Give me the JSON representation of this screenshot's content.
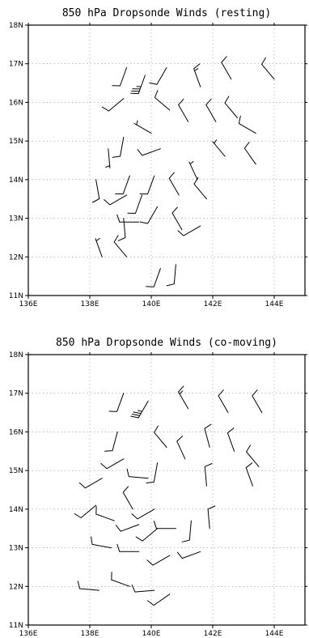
{
  "chart_data": [
    {
      "type": "wind-barb",
      "title": "850 hPa Dropsonde Winds (resting)",
      "xlim": [
        136,
        145
      ],
      "ylim": [
        11,
        18
      ],
      "x_ticks": [
        136,
        138,
        140,
        142,
        144
      ],
      "x_tick_labels": [
        "136E",
        "138E",
        "140E",
        "142E",
        "144E"
      ],
      "y_ticks": [
        11,
        12,
        13,
        14,
        15,
        16,
        17,
        18
      ],
      "y_tick_labels": [
        "11N",
        "12N",
        "13N",
        "14N",
        "15N",
        "16N",
        "17N",
        "18N"
      ],
      "grid": true,
      "barbs": [
        {
          "lon": 139.2,
          "lat": 16.9,
          "dir": 200,
          "spd": 10
        },
        {
          "lon": 139.8,
          "lat": 16.7,
          "dir": 200,
          "spd": 35
        },
        {
          "lon": 140.5,
          "lat": 16.9,
          "dir": 210,
          "spd": 10
        },
        {
          "lon": 141.6,
          "lat": 16.4,
          "dir": 340,
          "spd": 15
        },
        {
          "lon": 142.6,
          "lat": 16.6,
          "dir": 330,
          "spd": 10
        },
        {
          "lon": 144.0,
          "lat": 16.6,
          "dir": 320,
          "spd": 10
        },
        {
          "lon": 139.1,
          "lat": 16.1,
          "dir": 230,
          "spd": 10
        },
        {
          "lon": 140.6,
          "lat": 15.8,
          "dir": 310,
          "spd": 10
        },
        {
          "lon": 141.2,
          "lat": 15.5,
          "dir": 330,
          "spd": 10
        },
        {
          "lon": 142.1,
          "lat": 15.5,
          "dir": 330,
          "spd": 10
        },
        {
          "lon": 142.8,
          "lat": 15.6,
          "dir": 320,
          "spd": 10
        },
        {
          "lon": 143.4,
          "lat": 15.2,
          "dir": 300,
          "spd": 10
        },
        {
          "lon": 139.1,
          "lat": 15.1,
          "dir": 190,
          "spd": 10
        },
        {
          "lon": 138.6,
          "lat": 14.8,
          "dir": 175,
          "spd": 5
        },
        {
          "lon": 140.0,
          "lat": 15.2,
          "dir": 300,
          "spd": 5
        },
        {
          "lon": 140.3,
          "lat": 14.8,
          "dir": 250,
          "spd": 10
        },
        {
          "lon": 142.4,
          "lat": 14.6,
          "dir": 320,
          "spd": 5
        },
        {
          "lon": 143.4,
          "lat": 14.4,
          "dir": 325,
          "spd": 10
        },
        {
          "lon": 138.2,
          "lat": 14.0,
          "dir": 170,
          "spd": 10
        },
        {
          "lon": 139.3,
          "lat": 14.1,
          "dir": 200,
          "spd": 10
        },
        {
          "lon": 140.1,
          "lat": 14.1,
          "dir": 200,
          "spd": 10
        },
        {
          "lon": 141.5,
          "lat": 14.0,
          "dir": 335,
          "spd": 5
        },
        {
          "lon": 139.2,
          "lat": 13.6,
          "dir": 240,
          "spd": 10
        },
        {
          "lon": 139.7,
          "lat": 13.6,
          "dir": 200,
          "spd": 10
        },
        {
          "lon": 140.2,
          "lat": 13.3,
          "dir": 210,
          "spd": 10
        },
        {
          "lon": 140.9,
          "lat": 13.6,
          "dir": 330,
          "spd": 10
        },
        {
          "lon": 141.8,
          "lat": 13.5,
          "dir": 320,
          "spd": 10
        },
        {
          "lon": 139.1,
          "lat": 13.0,
          "dir": 175,
          "spd": 10
        },
        {
          "lon": 139.6,
          "lat": 12.9,
          "dir": 270,
          "spd": 10
        },
        {
          "lon": 141.0,
          "lat": 12.7,
          "dir": 330,
          "spd": 10
        },
        {
          "lon": 141.6,
          "lat": 12.8,
          "dir": 240,
          "spd": 10
        },
        {
          "lon": 138.4,
          "lat": 12.0,
          "dir": 340,
          "spd": 5
        },
        {
          "lon": 139.2,
          "lat": 12.0,
          "dir": 320,
          "spd": 10
        },
        {
          "lon": 140.3,
          "lat": 11.7,
          "dir": 200,
          "spd": 10
        },
        {
          "lon": 140.8,
          "lat": 11.8,
          "dir": 185,
          "spd": 10
        }
      ]
    },
    {
      "type": "wind-barb",
      "title": "850 hPa Dropsonde Winds (co-moving)",
      "xlim": [
        136,
        145
      ],
      "ylim": [
        11,
        18
      ],
      "x_ticks": [
        136,
        138,
        140,
        142,
        144
      ],
      "x_tick_labels": [
        "136E",
        "138E",
        "140E",
        "142E",
        "144E"
      ],
      "y_ticks": [
        11,
        12,
        13,
        14,
        15,
        16,
        17,
        18
      ],
      "y_tick_labels": [
        "11N",
        "12N",
        "13N",
        "14N",
        "15N",
        "16N",
        "17N",
        "18N"
      ],
      "grid": true,
      "barbs": [
        {
          "lon": 139.1,
          "lat": 17.0,
          "dir": 200,
          "spd": 10
        },
        {
          "lon": 139.9,
          "lat": 16.8,
          "dir": 210,
          "spd": 35
        },
        {
          "lon": 141.2,
          "lat": 16.6,
          "dir": 330,
          "spd": 15
        },
        {
          "lon": 142.5,
          "lat": 16.5,
          "dir": 330,
          "spd": 10
        },
        {
          "lon": 143.6,
          "lat": 16.5,
          "dir": 330,
          "spd": 10
        },
        {
          "lon": 138.9,
          "lat": 16.0,
          "dir": 195,
          "spd": 10
        },
        {
          "lon": 140.5,
          "lat": 15.6,
          "dir": 320,
          "spd": 10
        },
        {
          "lon": 141.1,
          "lat": 15.3,
          "dir": 335,
          "spd": 10
        },
        {
          "lon": 141.9,
          "lat": 15.6,
          "dir": 345,
          "spd": 10
        },
        {
          "lon": 142.7,
          "lat": 15.5,
          "dir": 340,
          "spd": 10
        },
        {
          "lon": 143.5,
          "lat": 15.1,
          "dir": 320,
          "spd": 10
        },
        {
          "lon": 138.4,
          "lat": 14.8,
          "dir": 240,
          "spd": 10
        },
        {
          "lon": 139.1,
          "lat": 15.3,
          "dir": 240,
          "spd": 10
        },
        {
          "lon": 140.2,
          "lat": 15.2,
          "dir": 190,
          "spd": 10
        },
        {
          "lon": 139.9,
          "lat": 14.8,
          "dir": 275,
          "spd": 10
        },
        {
          "lon": 141.8,
          "lat": 14.6,
          "dir": 355,
          "spd": 10
        },
        {
          "lon": 143.3,
          "lat": 14.6,
          "dir": 340,
          "spd": 10
        },
        {
          "lon": 138.2,
          "lat": 14.1,
          "dir": 230,
          "spd": 10
        },
        {
          "lon": 139.4,
          "lat": 14.0,
          "dir": 330,
          "spd": 10
        },
        {
          "lon": 140.1,
          "lat": 14.0,
          "dir": 240,
          "spd": 10
        },
        {
          "lon": 141.3,
          "lat": 13.7,
          "dir": 185,
          "spd": 10
        },
        {
          "lon": 138.8,
          "lat": 13.7,
          "dir": 290,
          "spd": 10
        },
        {
          "lon": 139.6,
          "lat": 13.6,
          "dir": 250,
          "spd": 10
        },
        {
          "lon": 140.2,
          "lat": 13.5,
          "dir": 230,
          "spd": 10
        },
        {
          "lon": 140.8,
          "lat": 13.5,
          "dir": 270,
          "spd": 10
        },
        {
          "lon": 141.9,
          "lat": 13.5,
          "dir": 355,
          "spd": 10
        },
        {
          "lon": 138.7,
          "lat": 13.0,
          "dir": 280,
          "spd": 10
        },
        {
          "lon": 139.6,
          "lat": 12.9,
          "dir": 270,
          "spd": 10
        },
        {
          "lon": 140.6,
          "lat": 12.8,
          "dir": 240,
          "spd": 10
        },
        {
          "lon": 141.6,
          "lat": 12.9,
          "dir": 250,
          "spd": 10
        },
        {
          "lon": 138.3,
          "lat": 11.9,
          "dir": 275,
          "spd": 10
        },
        {
          "lon": 139.3,
          "lat": 12.0,
          "dir": 290,
          "spd": 10
        },
        {
          "lon": 140.1,
          "lat": 11.9,
          "dir": 265,
          "spd": 10
        },
        {
          "lon": 140.6,
          "lat": 11.8,
          "dir": 235,
          "spd": 10
        }
      ]
    }
  ]
}
